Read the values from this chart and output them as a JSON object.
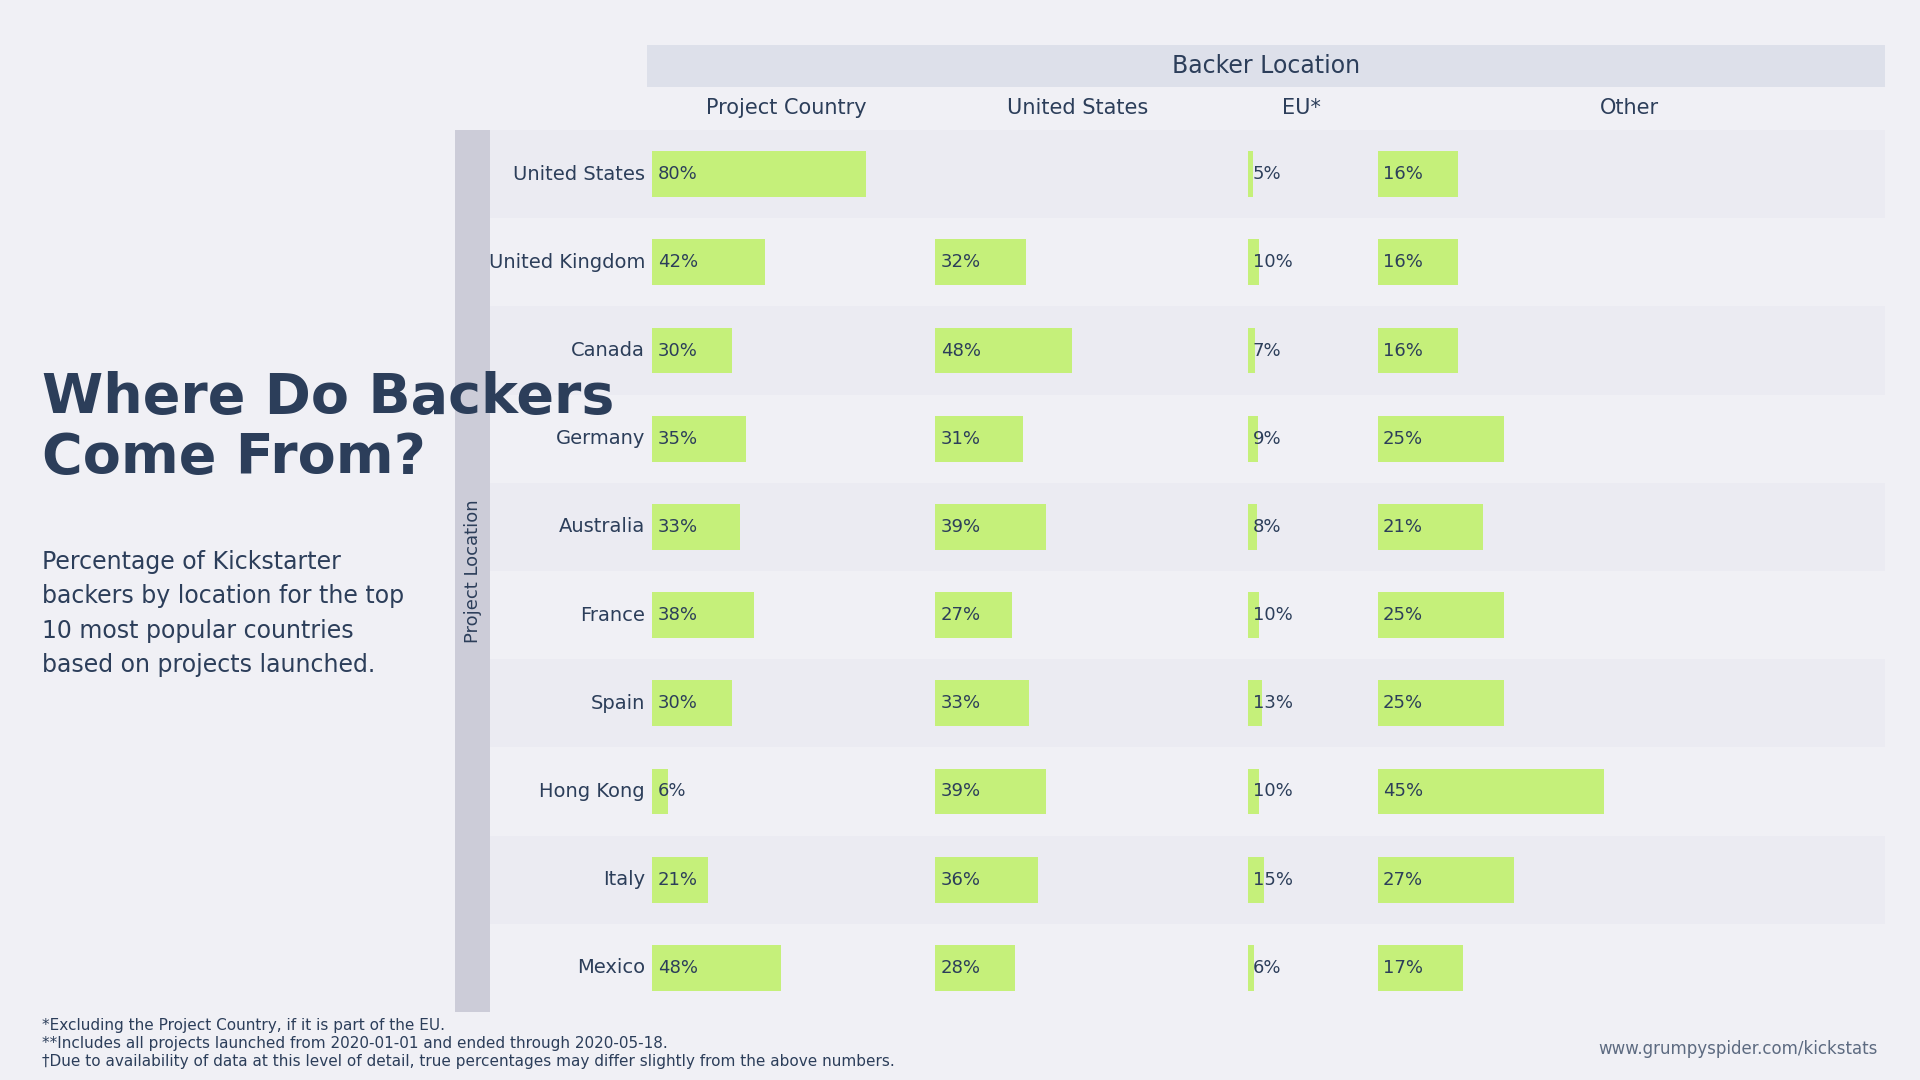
{
  "title": "Where Do Backers\nCome From?",
  "subtitle": "Percentage of Kickstarter\nbackers by location for the top\n10 most popular countries\nbased on projects launched.",
  "backer_location_header": "Backer Location",
  "col_headers": [
    "Project Country",
    "United States",
    "EU*",
    "Other"
  ],
  "ylabel": "Project Location",
  "countries": [
    "United States",
    "United Kingdom",
    "Canada",
    "Germany",
    "Australia",
    "France",
    "Spain",
    "Hong Kong",
    "Italy",
    "Mexico"
  ],
  "project_country_pct": [
    80,
    42,
    30,
    35,
    33,
    38,
    30,
    6,
    21,
    48
  ],
  "us_pct": [
    0,
    32,
    48,
    31,
    39,
    27,
    33,
    39,
    36,
    28
  ],
  "eu_pct": [
    5,
    10,
    7,
    9,
    8,
    10,
    13,
    10,
    15,
    6
  ],
  "other_pct": [
    16,
    16,
    16,
    25,
    21,
    25,
    25,
    45,
    27,
    17
  ],
  "bar_color": "#c5f07a",
  "bg_color": "#f0f0f5",
  "header_bg_color": "#dde0ea",
  "text_color": "#2c3e5a",
  "footnote1": "*Excluding the Project Country, if it is part of the EU.",
  "footnote2": "**Includes all projects launched from 2020-01-01 and ended through 2020-05-18.",
  "footnote3": "†Due to availability of data at this level of detail, true percentages may differ slightly from the above numbers.",
  "watermark": "www.grumpyspider.com/kickstats"
}
